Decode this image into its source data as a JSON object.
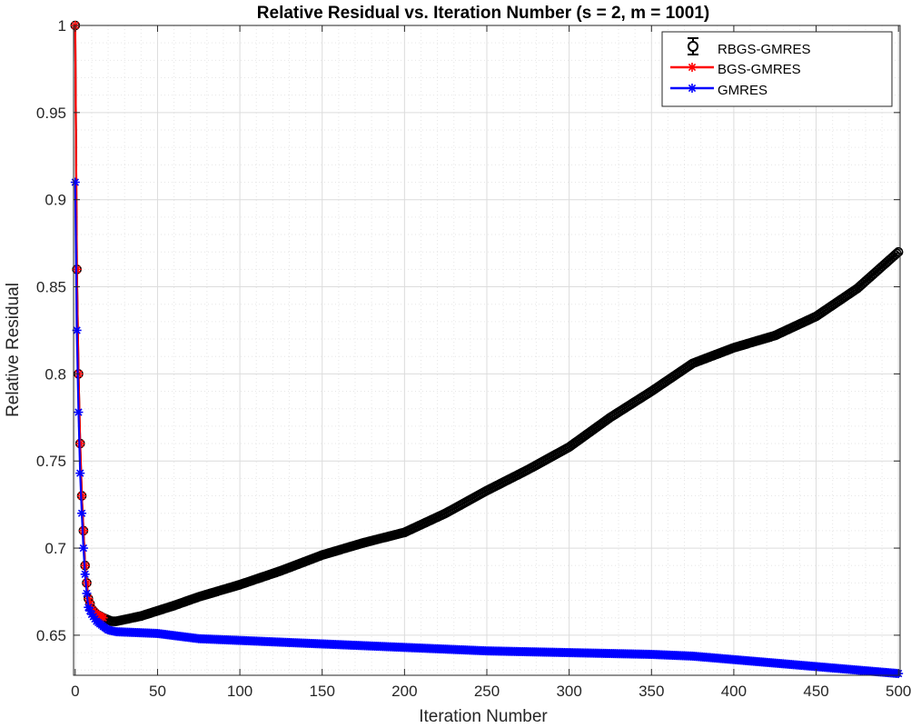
{
  "chart_data": {
    "type": "line",
    "title": "Relative Residual vs. Iteration Number (s = 2, m = 1001)",
    "xlabel": "Iteration Number",
    "ylabel": "Relative Residual",
    "xlim": [
      -1,
      501
    ],
    "ylim": [
      0.627,
      1.0
    ],
    "xticks": [
      0,
      50,
      100,
      150,
      200,
      250,
      300,
      350,
      400,
      450,
      500
    ],
    "xtick_labels": [
      "0",
      "50",
      "100",
      "150",
      "200",
      "250",
      "300",
      "350",
      "400",
      "450",
      "500"
    ],
    "yticks": [
      0.65,
      0.7,
      0.75,
      0.8,
      0.85,
      0.9,
      0.95,
      1.0
    ],
    "ytick_labels": [
      "0.65",
      "0.7",
      "0.75",
      "0.8",
      "0.85",
      "0.9",
      "0.95",
      "1"
    ],
    "grid": true,
    "legend_position": "top-right",
    "series": [
      {
        "name": "RBGS-GMRES",
        "color": "#000000",
        "marker": "circle-errorbar",
        "x": [
          0,
          1,
          2,
          3,
          4,
          5,
          6,
          7,
          8,
          10,
          13,
          17,
          22,
          25,
          30,
          40,
          50,
          60,
          75,
          100,
          125,
          150,
          175,
          200,
          225,
          250,
          275,
          300,
          325,
          350,
          375,
          400,
          425,
          450,
          475,
          500
        ],
        "y": [
          1.0,
          0.86,
          0.8,
          0.76,
          0.73,
          0.71,
          0.69,
          0.68,
          0.671,
          0.665,
          0.662,
          0.66,
          0.658,
          0.658,
          0.659,
          0.661,
          0.664,
          0.667,
          0.672,
          0.679,
          0.687,
          0.696,
          0.703,
          0.709,
          0.72,
          0.733,
          0.745,
          0.758,
          0.775,
          0.79,
          0.806,
          0.815,
          0.822,
          0.833,
          0.849,
          0.87
        ]
      },
      {
        "name": "BGS-GMRES",
        "color": "#ff0000",
        "marker": "star",
        "x": [
          0,
          1,
          2,
          3,
          4,
          5,
          6,
          7,
          8,
          10,
          13,
          17
        ],
        "y": [
          1.0,
          0.86,
          0.8,
          0.76,
          0.73,
          0.71,
          0.69,
          0.68,
          0.671,
          0.665,
          0.662,
          0.66
        ]
      },
      {
        "name": "GMRES",
        "color": "#0000ff",
        "marker": "star",
        "x": [
          0,
          1,
          2,
          3,
          4,
          5,
          6,
          7,
          8,
          10,
          13,
          17,
          20,
          25,
          50,
          75,
          100,
          150,
          200,
          250,
          300,
          350,
          375,
          400,
          450,
          500
        ],
        "y": [
          0.91,
          0.825,
          0.778,
          0.743,
          0.72,
          0.7,
          0.685,
          0.674,
          0.666,
          0.662,
          0.658,
          0.655,
          0.653,
          0.652,
          0.651,
          0.648,
          0.647,
          0.645,
          0.643,
          0.641,
          0.64,
          0.639,
          0.638,
          0.636,
          0.632,
          0.628
        ]
      }
    ]
  }
}
